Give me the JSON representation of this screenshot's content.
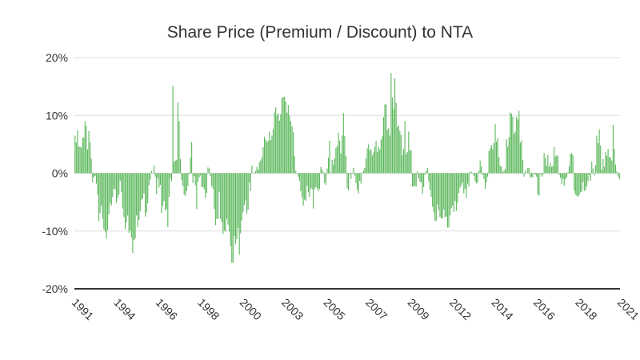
{
  "chart_data": {
    "type": "bar",
    "title": "Share Price (Premium / Discount) to NTA",
    "xlabel": "",
    "ylabel": "",
    "x_ticks": [
      "1991",
      "1994",
      "1996",
      "1998",
      "2000",
      "2003",
      "2005",
      "2007",
      "2009",
      "2012",
      "2014",
      "2016",
      "2018",
      "2021"
    ],
    "y_ticks": [
      "20%",
      "10%",
      "0%",
      "-10%",
      "-20%"
    ],
    "ylim": [
      -20,
      20
    ],
    "grid": true,
    "colors": {
      "bars": "#5cb85c",
      "grid": "#dddddd",
      "axis": "#333333",
      "title": "#333333"
    },
    "series": [
      {
        "values": [
          6.5,
          5.3,
          7.4,
          4.6,
          4.6,
          4.4,
          6.1,
          6.2,
          9,
          8.2,
          4.1,
          7.3,
          5.4,
          2.5,
          -1.6,
          -0.7,
          -0.5,
          -1.8,
          -3.7,
          -8.3,
          -6.9,
          -5.6,
          -7.9,
          -9.7,
          -10.1,
          -11.3,
          -9.8,
          -7.1,
          -5.2,
          -5.6,
          -4.1,
          -2.7,
          -2.8,
          -5.1,
          -4.3,
          -3.7,
          -1.3,
          -3.3,
          -6.1,
          -7.6,
          -9.7,
          -8.5,
          -7.3,
          -10.3,
          -9.9,
          -11.1,
          -13.8,
          -11.6,
          -11.3,
          -7.3,
          -9.3,
          -8.1,
          -6.6,
          -4.6,
          -4.4,
          -3.5,
          -7.5,
          -6.8,
          -5.2,
          -2.1,
          -1.1,
          0.4,
          -0.1,
          1.3,
          -0.6,
          -3.6,
          -0.9,
          -2.5,
          -2,
          -6.9,
          -5.7,
          -4.8,
          -6.5,
          -6.2,
          -9.3,
          -4.1,
          -0.9,
          -1.4,
          15.1,
          2,
          2.2,
          2.3,
          12.3,
          9,
          2.5,
          -1.2,
          -2.2,
          -3.7,
          -3.9,
          -3.1,
          -2.2,
          -0.2,
          2.7,
          5.4,
          -1.7,
          -0.5,
          -2.1,
          -6.2,
          -1.5,
          -0.7,
          -0.4,
          -2.4,
          -2.4,
          -2.8,
          -4.3,
          -3.4,
          1,
          0.8,
          -0.5,
          -2.2,
          -2.7,
          -6.2,
          -9,
          -7.9,
          -7.9,
          -3.2,
          -7.9,
          -8.5,
          -10.5,
          -9.9,
          -10.1,
          -7.9,
          -8.9,
          -10.1,
          -12.6,
          -15.5,
          -15.5,
          -10.9,
          -12.3,
          -11.4,
          -9.5,
          -14.1,
          -10.4,
          -8.2,
          -6.7,
          -5.5,
          -4.7,
          -7,
          -6.3,
          -1.6,
          -3.1,
          1.3,
          0.1,
          0.1,
          0.4,
          1.1,
          0.6,
          1.9,
          2.2,
          2.7,
          4.5,
          6.3,
          5.8,
          5.4,
          5.6,
          7.2,
          5.7,
          6.5,
          7.6,
          10.5,
          11.4,
          10,
          10.4,
          9.1,
          10.2,
          13,
          13.2,
          13.2,
          12.4,
          10.5,
          11.8,
          10,
          9,
          8.1,
          7.1,
          3,
          0.4,
          -0.1,
          -0.6,
          -1.3,
          -3.1,
          -4.2,
          -5.6,
          -4.6,
          -4.8,
          -2.2,
          -3.3,
          -4.1,
          -2.6,
          -2.8,
          -6.1,
          -2.7,
          -2.4,
          -2.6,
          -3.1,
          -2.7,
          1.1,
          0.6,
          0.2,
          -1.7,
          -2,
          0.8,
          2.7,
          5.6,
          -0.1,
          2.3,
          1.5,
          2.6,
          4.4,
          4.7,
          7,
          5.6,
          3.4,
          6.5,
          10.4,
          6.4,
          3,
          -2.6,
          -3,
          -0.2,
          -1,
          -0.1,
          0.9,
          -0.4,
          -1.7,
          -2.9,
          -3.5,
          -1.3,
          -1.8,
          0.1,
          0.5,
          0.9,
          2.6,
          4.3,
          5,
          3.9,
          4.2,
          3.1,
          3.6,
          4.6,
          5.6,
          3.7,
          4.6,
          4.1,
          5.8,
          6.4,
          9.7,
          11.9,
          11.9,
          7.5,
          7.8,
          6.5,
          17.3,
          13.1,
          11.1,
          16.4,
          12.2,
          8,
          8.3,
          7.3,
          6.6,
          3.1,
          4.2,
          9,
          3.3,
          3.7,
          7.2,
          3.9,
          4,
          -2.3,
          -2.3,
          -2.2,
          -2.3,
          0.3,
          -0.9,
          -1.5,
          -1.6,
          -3.6,
          -2.4,
          -0.3,
          0.4,
          0.9,
          -1.4,
          -2.9,
          -4.1,
          -5.8,
          -6.7,
          -8.3,
          -8.2,
          -5.4,
          -6.4,
          -7.6,
          -7.8,
          -7.8,
          -6.3,
          -7.6,
          -7.5,
          -9.4,
          -9.4,
          -7.3,
          -6.1,
          -5.6,
          -6.7,
          -4.8,
          -6.5,
          -5.1,
          -3.4,
          -2.5,
          -2.1,
          -1.6,
          -3.5,
          -2.7,
          -4.3,
          -1.8,
          -2.3,
          0.3,
          0.2,
          0,
          -0.5,
          -1.4,
          -1.8,
          -1.6,
          0.4,
          2.2,
          1.2,
          -0.3,
          -1,
          -2.7,
          -1.6,
          -0.6,
          3.8,
          4.3,
          4.9,
          4.1,
          5.2,
          8.5,
          5.5,
          6.1,
          2.8,
          1.3,
          1.1,
          0.2,
          0.5,
          0.7,
          5.9,
          4.6,
          6.2,
          10.5,
          10.3,
          9.8,
          6.8,
          7.2,
          9.8,
          9.3,
          10.8,
          5.3,
          5.7,
          2.3,
          -0.6,
          0.5,
          0.1,
          0.9,
          0.9,
          -0.8,
          -0.6,
          -0.7,
          0.1,
          -0.3,
          -0.6,
          -3.7,
          -3.9,
          -0.1,
          -0.6,
          -0.3,
          3.5,
          2.6,
          1.3,
          3.2,
          1.1,
          1.8,
          1.1,
          1.3,
          4.5,
          2.9,
          3.1,
          3,
          -0.3,
          -0.8,
          -1.9,
          -1,
          -2.2,
          -1.1,
          -0.7,
          0.2,
          1.2,
          3.3,
          3.5,
          3.1,
          -3,
          -3.7,
          -3.9,
          -4.1,
          -3.8,
          -3.3,
          -3.2,
          -1.5,
          -3.1,
          -2.9,
          -2.3,
          -1.4,
          -0.3,
          -1.3,
          2,
          0.8,
          -0.4,
          1.4,
          6.5,
          5.2,
          7.6,
          4.8,
          0.6,
          2.5,
          1.1,
          3.7,
          3,
          4.2,
          2.8,
          2.7,
          2.2,
          8.4,
          4.2,
          1.5,
          0.3,
          -0.6,
          -1
        ]
      }
    ]
  }
}
